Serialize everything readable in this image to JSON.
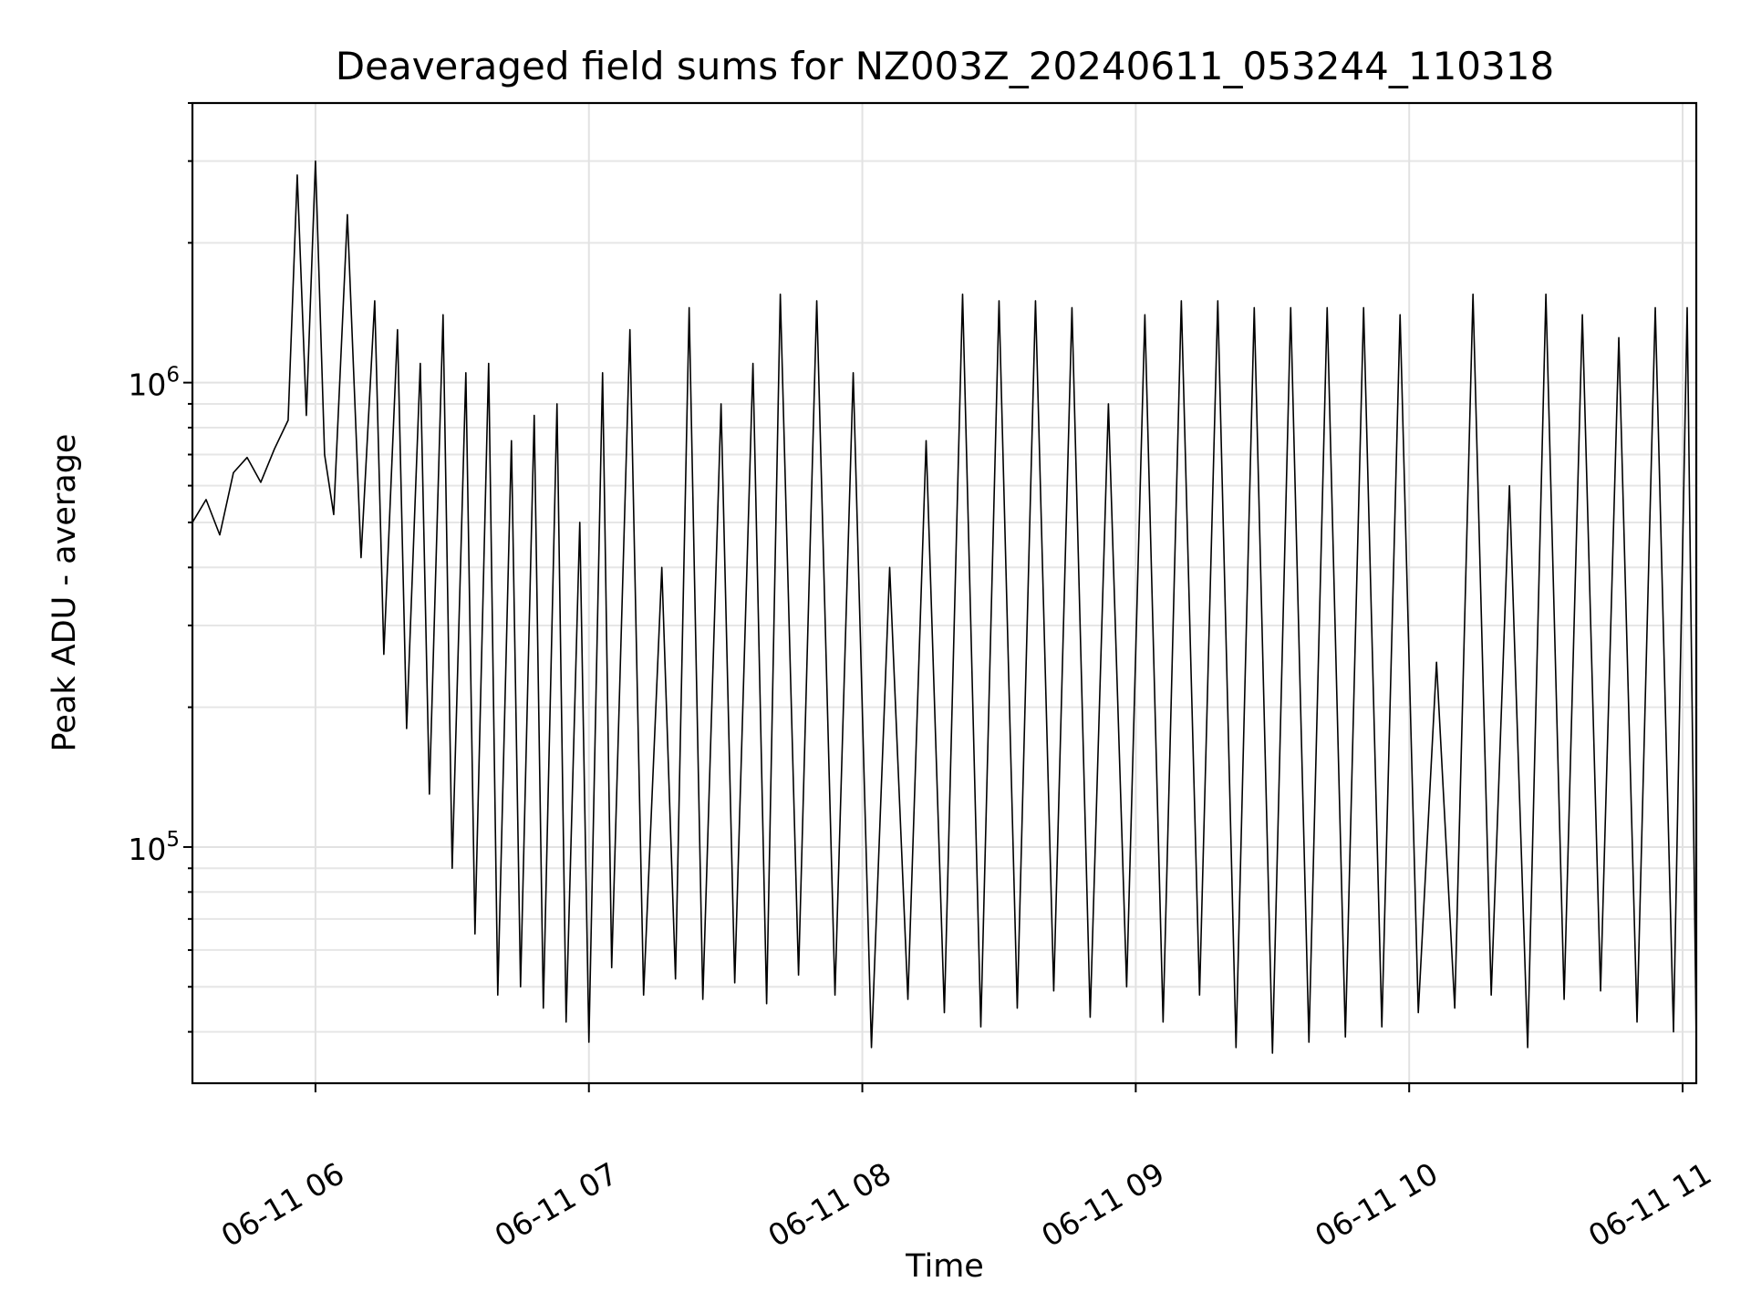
{
  "chart_data": {
    "type": "line",
    "title": "Deaveraged field sums for NZ003Z_20240611_053244_110318",
    "xlabel": "Time",
    "ylabel": "Peak ADU - average",
    "x_range": [
      "2024-06-11T05:33:00",
      "2024-06-11T11:03:00"
    ],
    "y_range": [
      31000,
      4000000
    ],
    "y_scale": "log",
    "grid": true,
    "legend": "none",
    "colors": {
      "line": "#000000",
      "grid": "#e2e2e2",
      "frame": "#000000"
    },
    "x_ticks": [
      {
        "value": "2024-06-11T06:00:00",
        "label": "06-11 06"
      },
      {
        "value": "2024-06-11T07:00:00",
        "label": "06-11 07"
      },
      {
        "value": "2024-06-11T08:00:00",
        "label": "06-11 08"
      },
      {
        "value": "2024-06-11T09:00:00",
        "label": "06-11 09"
      },
      {
        "value": "2024-06-11T10:00:00",
        "label": "06-11 10"
      },
      {
        "value": "2024-06-11T11:00:00",
        "label": "06-11 11"
      }
    ],
    "y_ticks": [
      {
        "value": 100000,
        "label_base": "10",
        "label_exp": "5"
      },
      {
        "value": 1000000,
        "label_base": "10",
        "label_exp": "6"
      }
    ],
    "series": [
      {
        "points": [
          [
            "2024-06-11T05:33:00",
            500000
          ],
          [
            "2024-06-11T05:36:00",
            560000
          ],
          [
            "2024-06-11T05:39:00",
            470000
          ],
          [
            "2024-06-11T05:42:00",
            640000
          ],
          [
            "2024-06-11T05:45:00",
            690000
          ],
          [
            "2024-06-11T05:48:00",
            610000
          ],
          [
            "2024-06-11T05:51:00",
            720000
          ],
          [
            "2024-06-11T05:54:00",
            830000
          ],
          [
            "2024-06-11T05:56:00",
            2800000
          ],
          [
            "2024-06-11T05:58:00",
            850000
          ],
          [
            "2024-06-11T06:00:00",
            3000000
          ],
          [
            "2024-06-11T06:02:00",
            700000
          ],
          [
            "2024-06-11T06:04:00",
            520000
          ],
          [
            "2024-06-11T06:07:00",
            2300000
          ],
          [
            "2024-06-11T06:10:00",
            420000
          ],
          [
            "2024-06-11T06:13:00",
            1500000
          ],
          [
            "2024-06-11T06:15:00",
            260000
          ],
          [
            "2024-06-11T06:18:00",
            1300000
          ],
          [
            "2024-06-11T06:20:00",
            180000
          ],
          [
            "2024-06-11T06:23:00",
            1100000
          ],
          [
            "2024-06-11T06:25:00",
            130000
          ],
          [
            "2024-06-11T06:28:00",
            1400000
          ],
          [
            "2024-06-11T06:30:00",
            90000
          ],
          [
            "2024-06-11T06:33:00",
            1050000
          ],
          [
            "2024-06-11T06:35:00",
            65000
          ],
          [
            "2024-06-11T06:38:00",
            1100000
          ],
          [
            "2024-06-11T06:40:00",
            48000
          ],
          [
            "2024-06-11T06:43:00",
            750000
          ],
          [
            "2024-06-11T06:45:00",
            50000
          ],
          [
            "2024-06-11T06:48:00",
            850000
          ],
          [
            "2024-06-11T06:50:00",
            45000
          ],
          [
            "2024-06-11T06:53:00",
            900000
          ],
          [
            "2024-06-11T06:55:00",
            42000
          ],
          [
            "2024-06-11T06:58:00",
            500000
          ],
          [
            "2024-06-11T07:00:00",
            38000
          ],
          [
            "2024-06-11T07:03:00",
            1050000
          ],
          [
            "2024-06-11T07:05:00",
            55000
          ],
          [
            "2024-06-11T07:09:00",
            1300000
          ],
          [
            "2024-06-11T07:12:00",
            48000
          ],
          [
            "2024-06-11T07:16:00",
            400000
          ],
          [
            "2024-06-11T07:19:00",
            52000
          ],
          [
            "2024-06-11T07:22:00",
            1450000
          ],
          [
            "2024-06-11T07:25:00",
            47000
          ],
          [
            "2024-06-11T07:29:00",
            900000
          ],
          [
            "2024-06-11T07:32:00",
            51000
          ],
          [
            "2024-06-11T07:36:00",
            1100000
          ],
          [
            "2024-06-11T07:39:00",
            46000
          ],
          [
            "2024-06-11T07:42:00",
            1550000
          ],
          [
            "2024-06-11T07:46:00",
            53000
          ],
          [
            "2024-06-11T07:50:00",
            1500000
          ],
          [
            "2024-06-11T07:54:00",
            48000
          ],
          [
            "2024-06-11T07:58:00",
            1050000
          ],
          [
            "2024-06-11T08:02:00",
            37000
          ],
          [
            "2024-06-11T08:06:00",
            400000
          ],
          [
            "2024-06-11T08:10:00",
            47000
          ],
          [
            "2024-06-11T08:14:00",
            750000
          ],
          [
            "2024-06-11T08:18:00",
            44000
          ],
          [
            "2024-06-11T08:22:00",
            1550000
          ],
          [
            "2024-06-11T08:26:00",
            41000
          ],
          [
            "2024-06-11T08:30:00",
            1500000
          ],
          [
            "2024-06-11T08:34:00",
            45000
          ],
          [
            "2024-06-11T08:38:00",
            1500000
          ],
          [
            "2024-06-11T08:42:00",
            49000
          ],
          [
            "2024-06-11T08:46:00",
            1450000
          ],
          [
            "2024-06-11T08:50:00",
            43000
          ],
          [
            "2024-06-11T08:54:00",
            900000
          ],
          [
            "2024-06-11T08:58:00",
            50000
          ],
          [
            "2024-06-11T09:02:00",
            1400000
          ],
          [
            "2024-06-11T09:06:00",
            42000
          ],
          [
            "2024-06-11T09:10:00",
            1500000
          ],
          [
            "2024-06-11T09:14:00",
            48000
          ],
          [
            "2024-06-11T09:18:00",
            1500000
          ],
          [
            "2024-06-11T09:22:00",
            37000
          ],
          [
            "2024-06-11T09:26:00",
            1450000
          ],
          [
            "2024-06-11T09:30:00",
            36000
          ],
          [
            "2024-06-11T09:34:00",
            1450000
          ],
          [
            "2024-06-11T09:38:00",
            38000
          ],
          [
            "2024-06-11T09:42:00",
            1450000
          ],
          [
            "2024-06-11T09:46:00",
            39000
          ],
          [
            "2024-06-11T09:50:00",
            1450000
          ],
          [
            "2024-06-11T09:54:00",
            41000
          ],
          [
            "2024-06-11T09:58:00",
            1400000
          ],
          [
            "2024-06-11T10:02:00",
            44000
          ],
          [
            "2024-06-11T10:06:00",
            250000
          ],
          [
            "2024-06-11T10:10:00",
            45000
          ],
          [
            "2024-06-11T10:14:00",
            1550000
          ],
          [
            "2024-06-11T10:18:00",
            48000
          ],
          [
            "2024-06-11T10:22:00",
            600000
          ],
          [
            "2024-06-11T10:26:00",
            37000
          ],
          [
            "2024-06-11T10:30:00",
            1550000
          ],
          [
            "2024-06-11T10:34:00",
            47000
          ],
          [
            "2024-06-11T10:38:00",
            1400000
          ],
          [
            "2024-06-11T10:42:00",
            49000
          ],
          [
            "2024-06-11T10:46:00",
            1250000
          ],
          [
            "2024-06-11T10:50:00",
            42000
          ],
          [
            "2024-06-11T10:54:00",
            1450000
          ],
          [
            "2024-06-11T10:58:00",
            40000
          ],
          [
            "2024-06-11T11:01:00",
            1450000
          ],
          [
            "2024-06-11T11:03:00",
            38000
          ]
        ]
      }
    ]
  }
}
